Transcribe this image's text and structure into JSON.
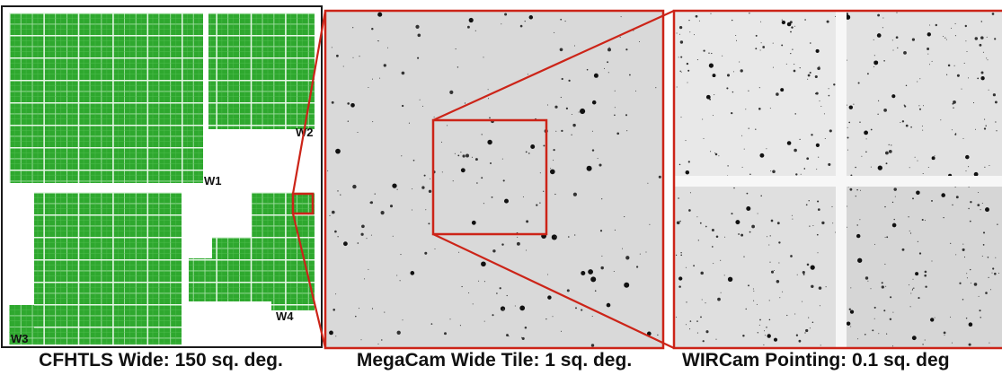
{
  "captions": {
    "wide": "CFHTLS Wide: 150 sq. deg.",
    "megacam": "MegaCam Wide Tile: 1 sq. deg.",
    "wircam": "WIRCam Pointing: 0.1 sq. deg"
  },
  "field_labels": {
    "w1": "W1",
    "w2": "W2",
    "w3": "W3",
    "w4": "W4"
  },
  "colors": {
    "tile_green": "#2ea82e",
    "tile_grid": "#9fdc9f",
    "zoom_red": "#cc2418",
    "frame_black": "#1a1a1a",
    "sky_gray": "#d9d9d9",
    "wircam_sky": "#e4e4e4"
  }
}
